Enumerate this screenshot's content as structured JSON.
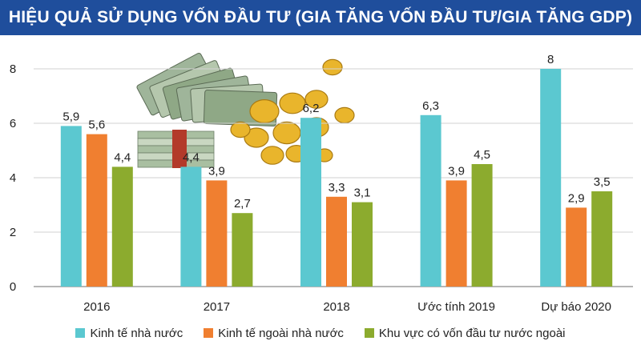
{
  "title": "HIỆU QUẢ SỬ DỤNG VỐN ĐẦU TƯ (GIA TĂNG VỐN ĐẦU TƯ/GIA TĂNG GDP)",
  "chart_data": {
    "type": "bar",
    "categories": [
      "2016",
      "2017",
      "2018",
      "Ước tính 2019",
      "Dự báo 2020"
    ],
    "series": [
      {
        "name": "Kinh tế nhà nước",
        "color": "#5bc8d0",
        "values": [
          5.9,
          4.4,
          6.2,
          6.3,
          8
        ],
        "labels": [
          "5,9",
          "4,4",
          "6,2",
          "6,3",
          "8"
        ]
      },
      {
        "name": "Kinh tế ngoài nhà nước",
        "color": "#f07f30",
        "values": [
          5.6,
          3.9,
          3.3,
          3.9,
          2.9
        ],
        "labels": [
          "5,6",
          "3,9",
          "3,3",
          "3,9",
          "2,9"
        ]
      },
      {
        "name": "Khu vực có vốn đầu tư nước ngoài",
        "color": "#8cab2e",
        "values": [
          4.4,
          2.7,
          3.1,
          4.5,
          3.5
        ],
        "labels": [
          "4,4",
          "2,7",
          "3,1",
          "4,5",
          "3,5"
        ]
      }
    ],
    "yticks": [
      0,
      2,
      4,
      6,
      8
    ],
    "ylim": [
      0,
      8.5
    ],
    "grid": true,
    "legend": "bottom"
  }
}
